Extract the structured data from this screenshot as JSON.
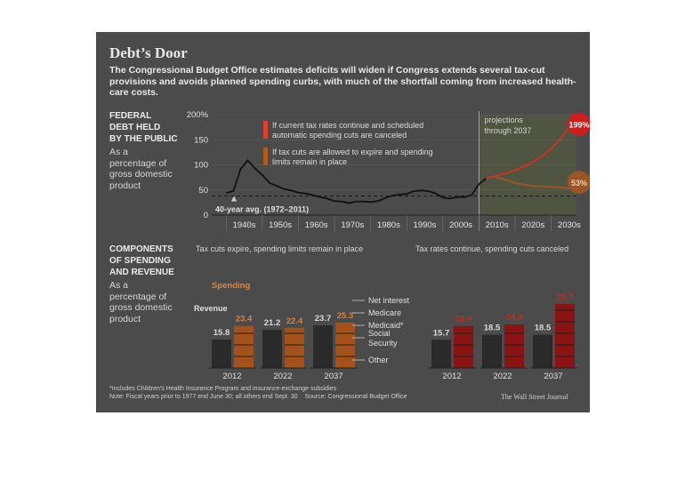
{
  "header": {
    "title": "Debt’s Door",
    "description": "The Congressional Budget Office estimates deficits will widen if Congress extends several tax-cut provisions and avoids planned spending curbs, with much of the shortfall coming from increased health-care costs."
  },
  "debt_section": {
    "label_lines": [
      "FEDERAL",
      "DEBT HELD",
      "BY THE PUBLIC"
    ],
    "sub_lines": [
      "As a",
      "percentage of",
      "gross domestic",
      "product"
    ]
  },
  "components_section": {
    "label_lines": [
      "COMPONENTS",
      "OF SPENDING",
      "AND REVENUE"
    ],
    "sub_lines": [
      "As a",
      "percentage of",
      "gross domestic",
      "product"
    ]
  },
  "footer": {
    "note1": "*Includes Children’s Health Insurance Program and insurance-exchange subsidies",
    "note2": "Note: Fiscal years prior to 1977 end June 30; all others end Sept. 30    Source: Congressional Budget Office",
    "credit": "The Wall Street Journal"
  },
  "colors": {
    "background": "#4b4b4b",
    "red": "#c8281e",
    "orange": "#b05a1e",
    "dark_bar": "#2a2a2a",
    "green_band": "#4f5540"
  },
  "chart_data": [
    {
      "type": "line",
      "xlim": [
        1936,
        2037
      ],
      "ylim": [
        0,
        200
      ],
      "yticks": [
        0,
        50,
        100,
        150,
        200
      ],
      "ytick_labels": [
        "0",
        "50",
        "100",
        "150",
        "200%"
      ],
      "xtick_labels": [
        "1940s",
        "1950s",
        "1960s",
        "1970s",
        "1980s",
        "1990s",
        "2000s",
        "2010s",
        "2020s",
        "2030s"
      ],
      "average": {
        "label": "40-year avg. (1972–2011)",
        "value": 38
      },
      "projection_label": [
        "projections",
        "through 2037"
      ],
      "series": [
        {
          "x": [
            1940,
            1942,
            1944,
            1946,
            1948,
            1950,
            1952,
            1954,
            1956,
            1958,
            1960,
            1962,
            1964,
            1966,
            1968,
            1970,
            1972,
            1974,
            1976,
            1978,
            1980,
            1982,
            1984,
            1986,
            1988,
            1990,
            1992,
            1994,
            1996,
            1998,
            2000,
            2002,
            2004,
            2006,
            2008,
            2010,
            2012
          ],
          "values": [
            44,
            48,
            92,
            109,
            93,
            80,
            64,
            58,
            52,
            49,
            45,
            43,
            40,
            36,
            33,
            28,
            27,
            24,
            27,
            27,
            26,
            28,
            34,
            39,
            41,
            42,
            48,
            49,
            48,
            43,
            35,
            33,
            36,
            36,
            40,
            62,
            73
          ]
        },
        {
          "name": "If current tax rates continue and scheduled automatic spending cuts are canceled",
          "end_label": "199%",
          "x": [
            2012,
            2015,
            2018,
            2021,
            2024,
            2027,
            2030,
            2033,
            2035,
            2037
          ],
          "values": [
            73,
            79,
            84,
            92,
            102,
            115,
            132,
            155,
            176,
            199
          ]
        },
        {
          "name": "If tax cuts are allowed to expire and spending limits remain in place",
          "end_label": "53%",
          "x": [
            2012,
            2014,
            2016,
            2018,
            2020,
            2022,
            2025,
            2028,
            2031,
            2034,
            2037
          ],
          "values": [
            73,
            77,
            73,
            69,
            64,
            61,
            58,
            57,
            56,
            54,
            53
          ]
        }
      ]
    },
    {
      "type": "bar",
      "title": "Tax cuts expire, spending limits remain in place",
      "categories": [
        "2012",
        "2022",
        "2037"
      ],
      "ylim": [
        0,
        36
      ],
      "series": [
        {
          "name": "Revenue",
          "values": [
            15.8,
            21.2,
            23.7
          ]
        },
        {
          "name": "Spending",
          "values": [
            23.4,
            22.4,
            25.3
          ]
        }
      ],
      "spending_components": [
        "Net interest",
        "Medicare",
        "Medicaid*",
        "Social Security",
        "Other"
      ]
    },
    {
      "type": "bar",
      "title": "Tax rates continue, spending cuts canceled",
      "categories": [
        "2012",
        "2022",
        "2037"
      ],
      "ylim": [
        0,
        36
      ],
      "series": [
        {
          "values": [
            15.7,
            18.5,
            18.5
          ]
        },
        {
          "values": [
            23.4,
            24.3,
            35.7
          ]
        }
      ]
    }
  ]
}
